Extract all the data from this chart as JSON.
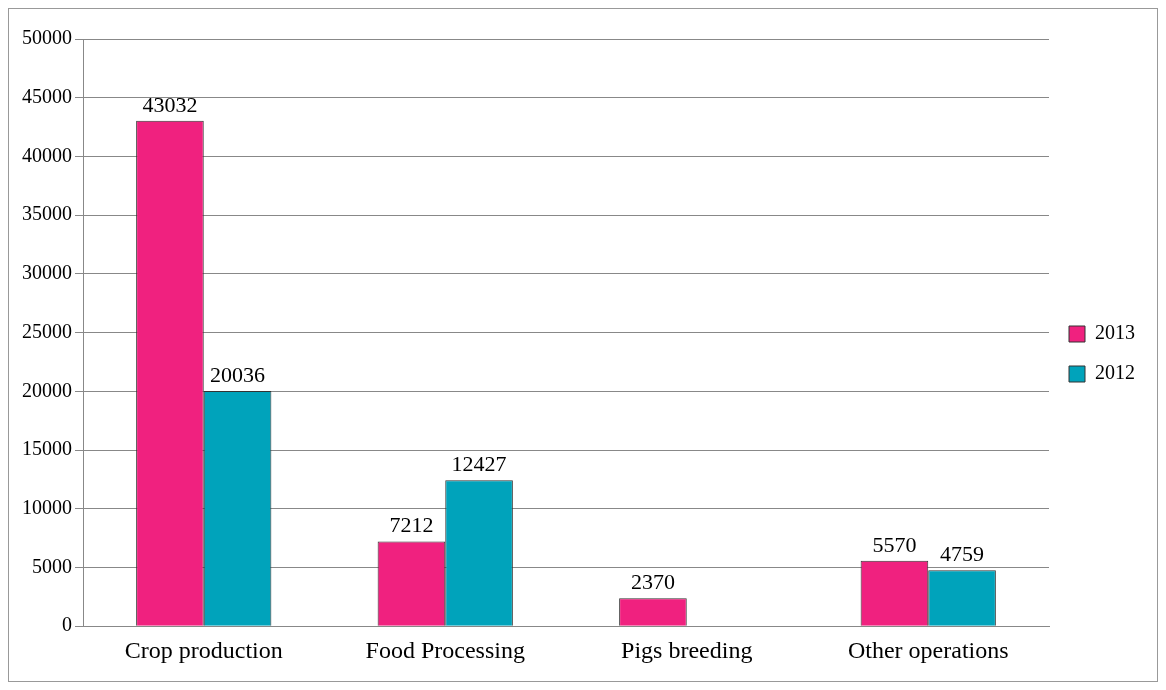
{
  "chart_data": {
    "type": "bar",
    "categories": [
      "Crop production",
      "Food Processing",
      "Pigs breeding",
      "Other operations"
    ],
    "series": [
      {
        "name": "2013",
        "color": "#f0217f",
        "values": [
          43032,
          7212,
          2370,
          5570
        ]
      },
      {
        "name": "2012",
        "color": "#00a3bb",
        "values": [
          20036,
          12427,
          null,
          4759
        ]
      }
    ],
    "ylim": [
      0,
      50000
    ],
    "yticks": [
      0,
      5000,
      10000,
      15000,
      20000,
      25000,
      30000,
      35000,
      40000,
      45000,
      50000
    ],
    "grid": "y",
    "legend": "right",
    "data_labels": true
  }
}
